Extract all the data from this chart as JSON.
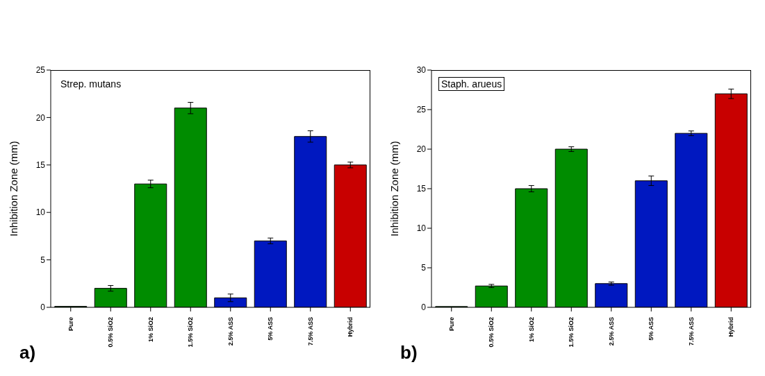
{
  "chart_data": [
    {
      "type": "bar",
      "categories": [
        "Pure",
        "0.5% SiO2",
        "1% SiO2",
        "1.5% SiO2",
        "2.5% ASS",
        "5% ASS",
        "7.5% ASS",
        "Hybrid"
      ],
      "values": [
        0.1,
        2,
        13,
        21,
        1,
        7,
        18,
        15
      ],
      "errors": [
        null,
        0.3,
        0.4,
        0.6,
        0.4,
        0.3,
        0.6,
        0.3
      ],
      "colors": [
        "#005a00",
        "#008c00",
        "#008c00",
        "#008c00",
        "#0018c0",
        "#0018c0",
        "#0018c0",
        "#c80000"
      ],
      "ylabel": "Inhibition Zone (mm)",
      "ylim": [
        0,
        25
      ],
      "yticks": [
        0,
        5,
        10,
        15,
        20,
        25
      ],
      "annotations": [
        "Strep. mutans",
        "a)"
      ]
    },
    {
      "type": "bar",
      "categories": [
        "Pure",
        "0.5% SiO2",
        "1% SiO2",
        "1.5% SiO2",
        "2.5% ASS",
        "5% ASS",
        "7.5% ASS",
        "Hybrid"
      ],
      "values": [
        0.1,
        2.7,
        15,
        20,
        3,
        16,
        22,
        27
      ],
      "errors": [
        null,
        0.2,
        0.4,
        0.3,
        0.2,
        0.6,
        0.3,
        0.6
      ],
      "colors": [
        "#005a00",
        "#008c00",
        "#008c00",
        "#008c00",
        "#0018c0",
        "#0018c0",
        "#0018c0",
        "#c80000"
      ],
      "ylabel": "Inhibition Zone (mm)",
      "ylim": [
        0,
        30
      ],
      "yticks": [
        0,
        5,
        10,
        15,
        20,
        25,
        30
      ],
      "annotations": [
        "Staph. arueus",
        "b)"
      ]
    }
  ]
}
